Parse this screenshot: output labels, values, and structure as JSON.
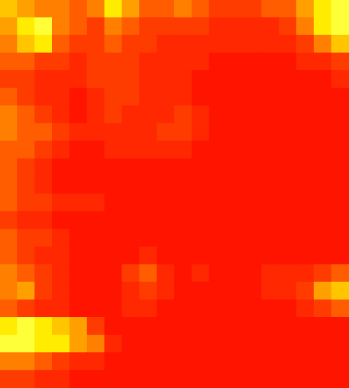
{
  "chart_data": {
    "type": "heatmap",
    "tick_labels": false,
    "xlim": [
      0,
      20
    ],
    "ylim": [
      0,
      22
    ],
    "color_range": [
      0,
      10
    ],
    "crosshair": {
      "x": 5.75,
      "y": 18.65
    },
    "cells": [
      [
        7,
        6,
        5,
        5,
        4,
        5,
        8,
        6,
        4,
        4,
        5,
        4,
        3,
        3,
        3,
        4,
        4,
        6,
        8,
        9
      ],
      [
        6,
        8,
        9,
        5,
        4,
        3,
        5,
        4,
        3,
        3,
        3,
        3,
        2,
        2,
        2,
        2,
        3,
        5,
        8,
        9
      ],
      [
        5,
        7,
        8,
        4,
        3,
        3,
        4,
        3,
        3,
        2,
        2,
        2,
        2,
        2,
        2,
        2,
        2,
        3,
        5,
        7
      ],
      [
        4,
        4,
        3,
        3,
        2,
        3,
        3,
        3,
        2,
        2,
        2,
        2,
        1,
        1,
        1,
        1,
        1,
        2,
        2,
        3
      ],
      [
        3,
        3,
        2,
        2,
        2,
        3,
        3,
        3,
        2,
        2,
        2,
        1,
        1,
        1,
        1,
        1,
        1,
        1,
        1,
        2
      ],
      [
        4,
        3,
        2,
        2,
        1,
        2,
        3,
        3,
        2,
        2,
        2,
        1,
        1,
        1,
        1,
        1,
        1,
        1,
        1,
        1
      ],
      [
        5,
        4,
        3,
        2,
        1,
        2,
        3,
        2,
        2,
        2,
        3,
        2,
        1,
        1,
        1,
        1,
        1,
        1,
        1,
        1
      ],
      [
        5,
        4,
        4,
        3,
        2,
        2,
        2,
        2,
        2,
        3,
        3,
        2,
        1,
        1,
        1,
        1,
        1,
        1,
        1,
        1
      ],
      [
        4,
        4,
        3,
        2,
        1,
        1,
        2,
        2,
        2,
        2,
        2,
        1,
        1,
        1,
        1,
        1,
        1,
        1,
        1,
        1
      ],
      [
        4,
        3,
        2,
        1,
        1,
        1,
        1,
        1,
        1,
        1,
        1,
        1,
        1,
        1,
        1,
        1,
        1,
        1,
        1,
        1
      ],
      [
        4,
        3,
        2,
        1,
        1,
        1,
        1,
        1,
        1,
        1,
        1,
        1,
        1,
        1,
        1,
        1,
        1,
        1,
        1,
        1
      ],
      [
        4,
        3,
        3,
        2,
        2,
        2,
        1,
        1,
        1,
        1,
        1,
        1,
        1,
        1,
        1,
        1,
        1,
        1,
        1,
        1
      ],
      [
        3,
        2,
        2,
        1,
        1,
        1,
        1,
        1,
        1,
        1,
        1,
        1,
        1,
        1,
        1,
        1,
        1,
        1,
        1,
        1
      ],
      [
        4,
        3,
        3,
        2,
        1,
        1,
        1,
        1,
        1,
        1,
        1,
        1,
        1,
        1,
        1,
        1,
        1,
        1,
        1,
        1
      ],
      [
        4,
        3,
        2,
        2,
        1,
        1,
        1,
        1,
        2,
        1,
        1,
        1,
        1,
        1,
        1,
        1,
        1,
        1,
        1,
        1
      ],
      [
        5,
        4,
        3,
        2,
        1,
        1,
        1,
        3,
        4,
        2,
        1,
        2,
        1,
        1,
        1,
        2,
        2,
        2,
        3,
        4
      ],
      [
        5,
        6,
        3,
        2,
        1,
        1,
        1,
        2,
        3,
        2,
        1,
        1,
        1,
        1,
        1,
        2,
        2,
        3,
        6,
        7
      ],
      [
        4,
        3,
        2,
        2,
        1,
        1,
        1,
        2,
        2,
        1,
        1,
        1,
        1,
        1,
        1,
        1,
        1,
        2,
        3,
        4
      ],
      [
        8,
        9,
        8,
        7,
        6,
        3,
        1,
        1,
        1,
        1,
        1,
        1,
        1,
        1,
        1,
        1,
        1,
        1,
        1,
        1
      ],
      [
        9,
        9,
        8,
        8,
        6,
        5,
        2,
        1,
        1,
        1,
        1,
        1,
        1,
        1,
        1,
        1,
        1,
        1,
        1,
        1
      ],
      [
        5,
        5,
        4,
        3,
        2,
        2,
        1,
        1,
        1,
        1,
        1,
        1,
        1,
        1,
        1,
        1,
        1,
        1,
        1,
        1
      ],
      [
        3,
        3,
        2,
        2,
        1,
        1,
        1,
        1,
        1,
        1,
        1,
        1,
        1,
        1,
        1,
        1,
        1,
        1,
        1,
        1
      ]
    ]
  }
}
